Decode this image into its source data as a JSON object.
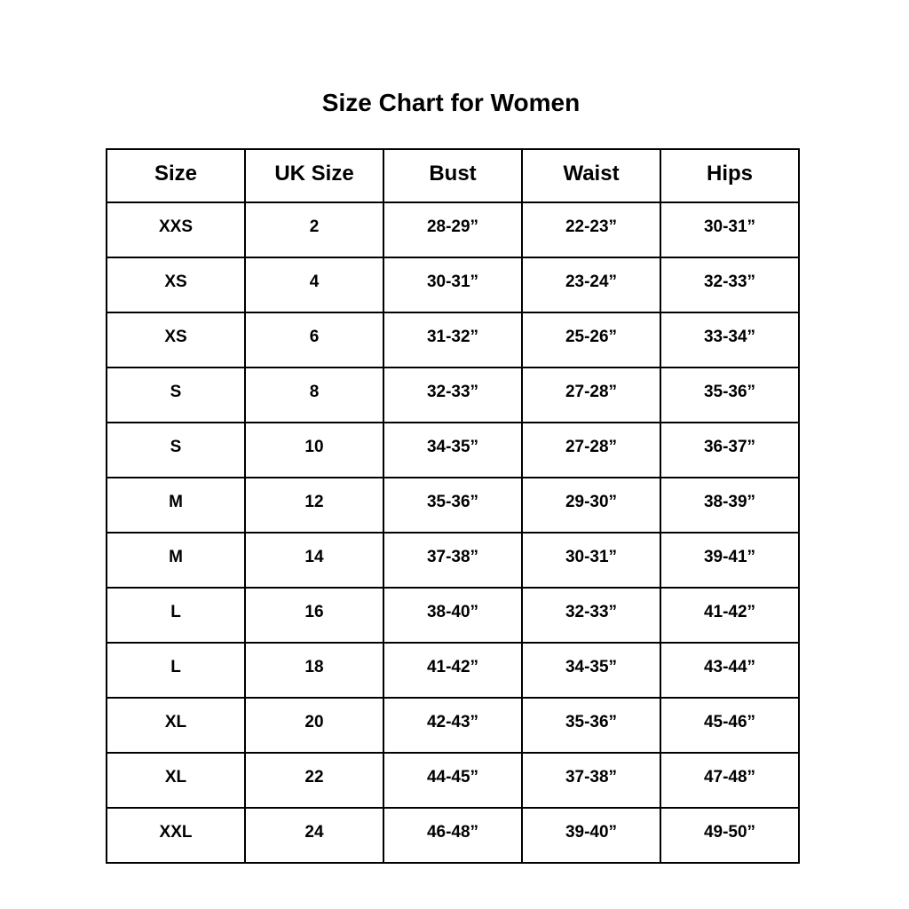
{
  "title": "Size Chart for Women",
  "table": {
    "headers": [
      "Size",
      "UK Size",
      "Bust",
      "Waist",
      "Hips"
    ],
    "rows": [
      [
        "XXS",
        "2",
        "28-29”",
        "22-23”",
        "30-31”"
      ],
      [
        "XS",
        "4",
        "30-31”",
        "23-24”",
        "32-33”"
      ],
      [
        "XS",
        "6",
        "31-32”",
        "25-26”",
        "33-34”"
      ],
      [
        "S",
        "8",
        "32-33”",
        "27-28”",
        "35-36”"
      ],
      [
        "S",
        "10",
        "34-35”",
        "27-28”",
        "36-37”"
      ],
      [
        "M",
        "12",
        "35-36”",
        "29-30”",
        "38-39”"
      ],
      [
        "M",
        "14",
        "37-38”",
        "30-31”",
        "39-41”"
      ],
      [
        "L",
        "16",
        "38-40”",
        "32-33”",
        "41-42”"
      ],
      [
        "L",
        "18",
        "41-42”",
        "34-35”",
        "43-44”"
      ],
      [
        "XL",
        "20",
        "42-43”",
        "35-36”",
        "45-46”"
      ],
      [
        "XL",
        "22",
        "44-45”",
        "37-38”",
        "47-48”"
      ],
      [
        "XXL",
        "24",
        "46-48”",
        "39-40”",
        "49-50”"
      ]
    ]
  }
}
